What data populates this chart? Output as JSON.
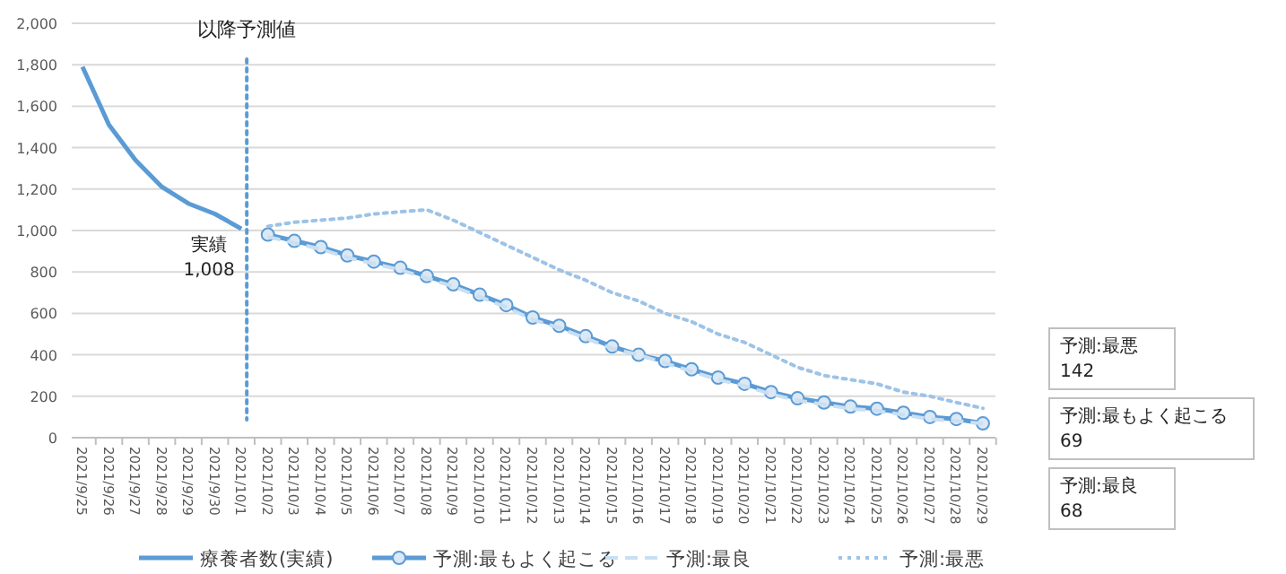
{
  "chart_data": {
    "type": "line",
    "categories": [
      "2021/9/25",
      "2021/9/26",
      "2021/9/27",
      "2021/9/28",
      "2021/9/29",
      "2021/9/30",
      "2021/10/1",
      "2021/10/2",
      "2021/10/3",
      "2021/10/4",
      "2021/10/5",
      "2021/10/6",
      "2021/10/7",
      "2021/10/8",
      "2021/10/9",
      "2021/10/10",
      "2021/10/11",
      "2021/10/12",
      "2021/10/13",
      "2021/10/14",
      "2021/10/15",
      "2021/10/16",
      "2021/10/17",
      "2021/10/18",
      "2021/10/19",
      "2021/10/20",
      "2021/10/21",
      "2021/10/22",
      "2021/10/23",
      "2021/10/24",
      "2021/10/25",
      "2021/10/26",
      "2021/10/27",
      "2021/10/28",
      "2021/10/29"
    ],
    "series": [
      {
        "name": "療養者数(実績)",
        "color": "#5b9bd5",
        "line_style": "solid",
        "marker": "none",
        "values": [
          1790,
          1510,
          1340,
          1210,
          1130,
          1080,
          1008,
          null,
          null,
          null,
          null,
          null,
          null,
          null,
          null,
          null,
          null,
          null,
          null,
          null,
          null,
          null,
          null,
          null,
          null,
          null,
          null,
          null,
          null,
          null,
          null,
          null,
          null,
          null,
          null
        ]
      },
      {
        "name": "予測:最もよく起こる",
        "color": "#5b9bd5",
        "line_style": "solid",
        "marker": "circle",
        "values": [
          null,
          null,
          null,
          null,
          null,
          null,
          null,
          980,
          950,
          920,
          880,
          850,
          820,
          780,
          740,
          690,
          640,
          580,
          540,
          490,
          440,
          400,
          370,
          330,
          290,
          260,
          220,
          190,
          170,
          150,
          140,
          120,
          100,
          90,
          69
        ]
      },
      {
        "name": "予測:最良",
        "color": "#c9dff2",
        "line_style": "dashed",
        "marker": "none",
        "values": [
          null,
          null,
          null,
          null,
          null,
          null,
          null,
          970,
          940,
          910,
          870,
          840,
          810,
          770,
          730,
          680,
          630,
          570,
          530,
          480,
          430,
          400,
          360,
          320,
          280,
          250,
          210,
          180,
          160,
          140,
          130,
          110,
          90,
          80,
          68
        ]
      },
      {
        "name": "予測:最悪",
        "color": "#9dc3e6",
        "line_style": "dotted",
        "marker": "none",
        "values": [
          null,
          null,
          null,
          null,
          null,
          null,
          null,
          1020,
          1040,
          1050,
          1060,
          1080,
          1090,
          1100,
          1050,
          990,
          930,
          870,
          810,
          760,
          700,
          660,
          600,
          560,
          500,
          460,
          400,
          340,
          300,
          280,
          260,
          220,
          200,
          170,
          142
        ]
      }
    ],
    "ylim": [
      0,
      2000
    ],
    "yticks": [
      0,
      200,
      400,
      600,
      800,
      {
        "value": 1000,
        "label": "1,000"
      },
      {
        "value": 1200,
        "label": "1,200"
      },
      {
        "value": 1400,
        "label": "1,400"
      },
      {
        "value": 1600,
        "label": "1,600"
      },
      {
        "value": 1800,
        "label": "1,800"
      },
      {
        "value": 2000,
        "label": "2,000"
      }
    ],
    "grid": "y",
    "legend": "bottom",
    "ref_lines": [
      {
        "axis": "x",
        "value": "2021/10/1",
        "label": "以降予測値",
        "color": "#5b9bd5",
        "line_style": "dotted"
      }
    ],
    "annotations": [
      {
        "text": "実績\n1,008",
        "x": "2021/10/1",
        "y": 1008
      },
      "予測:最悪\n142",
      "予測:最もよく起こる\n69",
      "予測:最良\n68"
    ]
  }
}
